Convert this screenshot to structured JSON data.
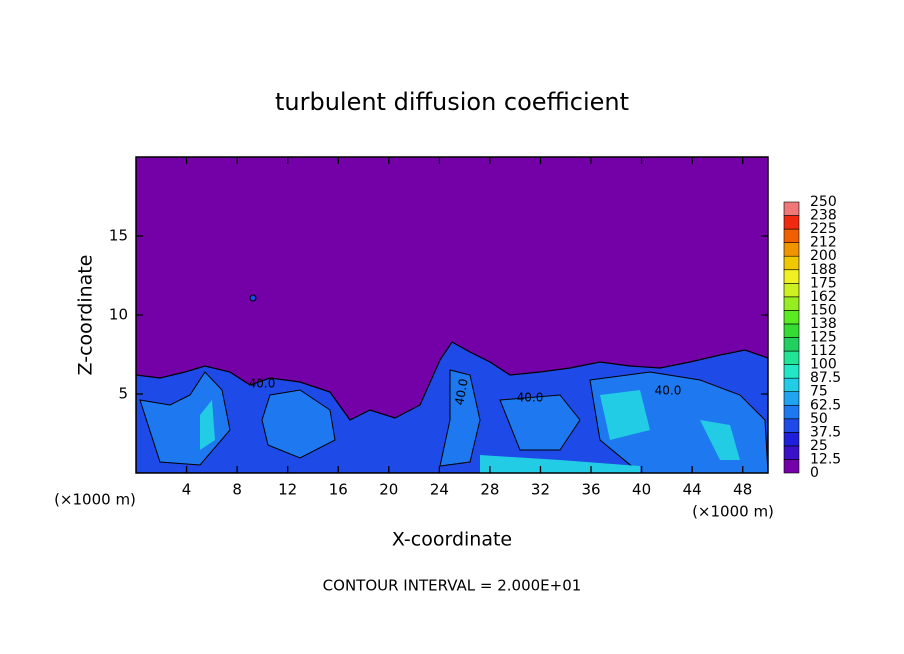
{
  "chart_data": {
    "type": "contour",
    "title": "turbulent diffusion coefficient",
    "x_label": "X-coordinate",
    "y_label": "Z-coordinate",
    "x_unit_label": "(×1000 m)",
    "y_unit_label": "(×1000 m)",
    "xlim": [
      0,
      50
    ],
    "xticks": [
      4,
      8,
      12,
      16,
      20,
      24,
      28,
      32,
      36,
      40,
      44,
      48
    ],
    "ylim": [
      0,
      20
    ],
    "yticks": [
      5,
      10,
      15
    ],
    "levels": [
      0,
      12.5,
      25,
      37.5,
      50,
      62.5,
      75,
      87.5,
      100,
      112,
      125,
      138,
      150,
      162,
      175,
      188,
      200,
      212,
      225,
      238,
      250
    ],
    "level_colors": [
      "#7400a8",
      "#3a10c8",
      "#2020dc",
      "#1e4ae8",
      "#1e78f0",
      "#20a4f0",
      "#22cce4",
      "#22e8c8",
      "#22e496",
      "#22d060",
      "#34dc34",
      "#5aec22",
      "#96ee22",
      "#cdf022",
      "#f0f022",
      "#f0c800",
      "#f09400",
      "#f06000",
      "#f02a10",
      "#f07878"
    ],
    "contour_labels": [
      {
        "value": 40,
        "label": "40.0"
      },
      {
        "value": 40,
        "label": "40.0"
      },
      {
        "value": 40,
        "label": "40.0"
      },
      {
        "value": 40,
        "label": "40.0"
      }
    ],
    "annotation": "CONTOUR INTERVAL = 2.000E+01"
  }
}
